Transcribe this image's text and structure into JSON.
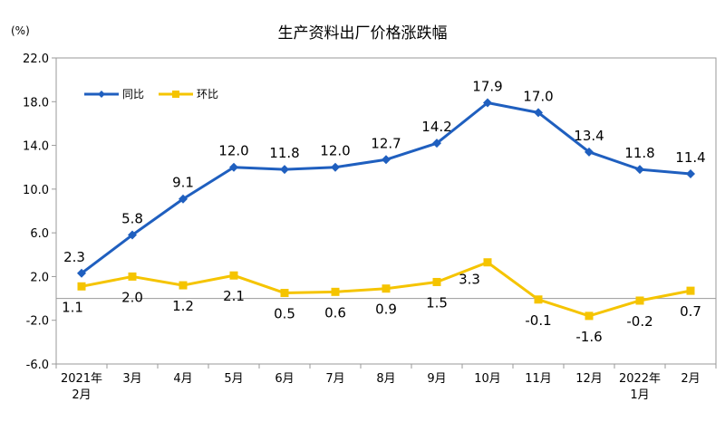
{
  "chart_data": {
    "type": "line",
    "title": "生产资料出厂价格涨跌幅",
    "unit_label": "(%)",
    "categories": [
      [
        "2021年",
        "2月"
      ],
      [
        "3月"
      ],
      [
        "4月"
      ],
      [
        "5月"
      ],
      [
        "6月"
      ],
      [
        "7月"
      ],
      [
        "8月"
      ],
      [
        "9月"
      ],
      [
        "10月"
      ],
      [
        "11月"
      ],
      [
        "12月"
      ],
      [
        "2022年",
        "1月"
      ],
      [
        "2月"
      ]
    ],
    "ylim": [
      -6.0,
      22.0
    ],
    "yticks": [
      -6.0,
      -2.0,
      2.0,
      6.0,
      10.0,
      14.0,
      18.0,
      22.0
    ],
    "ytick_labels": [
      "-6.0",
      "-2.0",
      "2.0",
      "6.0",
      "10.0",
      "14.0",
      "18.0",
      "22.0"
    ],
    "grid": false,
    "legend_position": "top-left",
    "series": [
      {
        "name": "同比",
        "color": "#1f5fbf",
        "marker": "diamond",
        "values": [
          2.3,
          5.8,
          9.1,
          12.0,
          11.8,
          12.0,
          12.7,
          14.2,
          17.9,
          17.0,
          13.4,
          11.8,
          11.4
        ],
        "labels": [
          "2.3",
          "5.8",
          "9.1",
          "12.0",
          "11.8",
          "12.0",
          "12.7",
          "14.2",
          "17.9",
          "17.0",
          "13.4",
          "11.8",
          "11.4"
        ]
      },
      {
        "name": "环比",
        "color": "#f5c400",
        "marker": "square",
        "values": [
          1.1,
          2.0,
          1.2,
          2.1,
          0.5,
          0.6,
          0.9,
          1.5,
          3.3,
          -0.1,
          -1.6,
          -0.2,
          0.7
        ],
        "labels": [
          "1.1",
          "2.0",
          "1.2",
          "2.1",
          "0.5",
          "0.6",
          "0.9",
          "1.5",
          "3.3",
          "-0.1",
          "-1.6",
          "-0.2",
          "0.7"
        ]
      }
    ]
  }
}
